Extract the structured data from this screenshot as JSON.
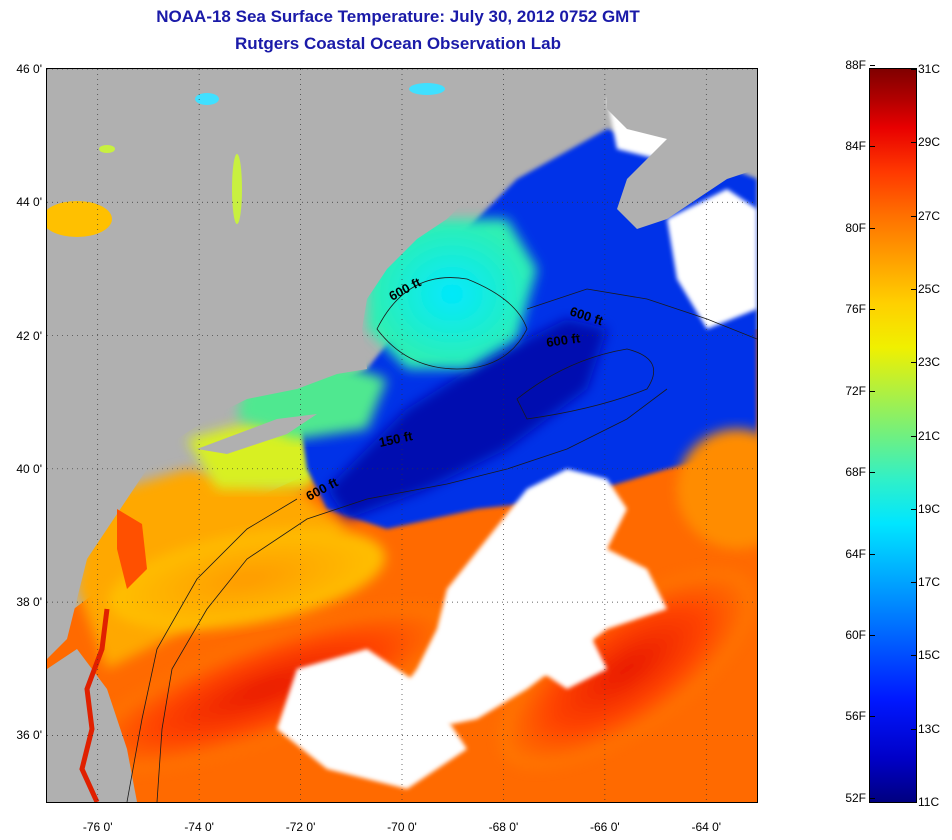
{
  "title": "NOAA-18 Sea Surface Temperature:  July 30, 2012 0752 GMT",
  "subtitle": "Rutgers Coastal Ocean Observation Lab",
  "axes": {
    "lat_labels": [
      "46 0'",
      "44 0'",
      "42 0'",
      "40 0'",
      "38 0'",
      "36 0'"
    ],
    "lat_values": [
      46,
      44,
      42,
      40,
      38,
      36
    ],
    "lon_labels": [
      "-76 0'",
      "-74 0'",
      "-72 0'",
      "-70 0'",
      "-68 0'",
      "-66 0'",
      "-64 0'"
    ],
    "lon_values": [
      -76,
      -74,
      -72,
      -70,
      -68,
      -66,
      -64
    ],
    "lat_range": [
      35,
      46
    ],
    "lon_range": [
      -77,
      -63
    ]
  },
  "contours": [
    {
      "label": "600 ft"
    },
    {
      "label": "600 ft"
    },
    {
      "label": "600 ft"
    },
    {
      "label": "150 ft"
    },
    {
      "label": "600 ft"
    }
  ],
  "colorbar": {
    "fahrenheit": [
      "88F",
      "84F",
      "80F",
      "76F",
      "72F",
      "68F",
      "64F",
      "60F",
      "56F",
      "52F"
    ],
    "celsius": [
      "31C",
      "29C",
      "27C",
      "25C",
      "23C",
      "21C",
      "19C",
      "17C",
      "15C",
      "13C",
      "11C"
    ],
    "range_c": [
      11,
      31
    ]
  },
  "colors": {
    "land": "#b0b0b0",
    "cloud": "#ffffff",
    "title": "#1a1aa8"
  }
}
